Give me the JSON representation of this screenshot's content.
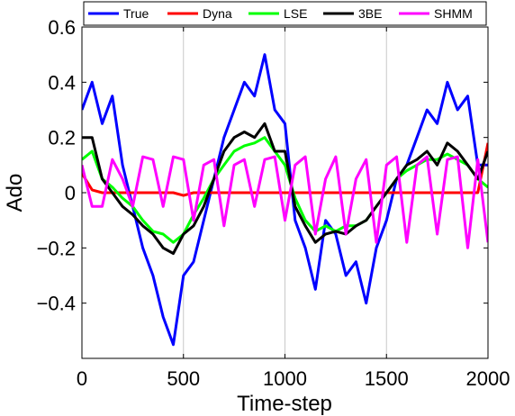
{
  "chart_data": {
    "type": "line",
    "xlabel": "Time-step",
    "ylabel": "Ado",
    "xlim": [
      0,
      2000
    ],
    "ylim": [
      -0.6,
      0.6
    ],
    "x_ticks": [
      0,
      500,
      1000,
      1500,
      2000
    ],
    "x_tick_labels": [
      "0",
      "500",
      "1000",
      "1500",
      "2000"
    ],
    "y_ticks": [
      -0.4,
      -0.2,
      0,
      0.2,
      0.4,
      0.6
    ],
    "y_tick_labels": [
      "−0.4",
      "−0.2",
      "0",
      "0.2",
      "0.4",
      "0.6"
    ],
    "grid": "vertical",
    "legend_position": "top",
    "x": [
      0,
      50,
      100,
      150,
      200,
      250,
      300,
      350,
      400,
      450,
      500,
      550,
      600,
      650,
      700,
      750,
      800,
      850,
      900,
      950,
      1000,
      1050,
      1100,
      1150,
      1200,
      1250,
      1300,
      1350,
      1400,
      1450,
      1500,
      1550,
      1600,
      1650,
      1700,
      1750,
      1800,
      1850,
      1900,
      1950,
      2000
    ],
    "series": [
      {
        "name": "True",
        "color": "#0000ff",
        "values": [
          0.3,
          0.4,
          0.25,
          0.35,
          0.1,
          -0.05,
          -0.2,
          -0.3,
          -0.45,
          -0.55,
          -0.3,
          -0.25,
          -0.1,
          0.05,
          0.2,
          0.3,
          0.4,
          0.35,
          0.5,
          0.3,
          0.25,
          -0.1,
          -0.2,
          -0.35,
          -0.1,
          -0.15,
          -0.3,
          -0.25,
          -0.4,
          -0.2,
          -0.1,
          0.05,
          0.1,
          0.2,
          0.3,
          0.25,
          0.4,
          0.3,
          0.35,
          0.1,
          0.1
        ]
      },
      {
        "name": "Dyna",
        "color": "#ff0000",
        "values": [
          0.07,
          0.01,
          0.0,
          0.0,
          0.0,
          0.0,
          0.0,
          0.0,
          0.0,
          0.0,
          -0.01,
          0.0,
          0.0,
          0.0,
          0.0,
          0.0,
          0.0,
          0.0,
          0.0,
          0.0,
          0.0,
          0.0,
          0.0,
          0.0,
          0.0,
          0.0,
          0.0,
          0.0,
          0.0,
          0.0,
          0.0,
          0.0,
          0.0,
          0.0,
          0.0,
          0.0,
          0.0,
          0.0,
          0.0,
          0.0,
          0.18
        ]
      },
      {
        "name": "LSE",
        "color": "#00ff00",
        "values": [
          0.12,
          0.15,
          0.05,
          0.02,
          -0.02,
          -0.05,
          -0.1,
          -0.14,
          -0.15,
          -0.18,
          -0.15,
          -0.08,
          -0.02,
          0.05,
          0.1,
          0.15,
          0.17,
          0.18,
          0.2,
          0.15,
          0.1,
          -0.02,
          -0.1,
          -0.14,
          -0.12,
          -0.14,
          -0.12,
          -0.12,
          -0.1,
          -0.05,
          0.0,
          0.05,
          0.08,
          0.1,
          0.12,
          0.12,
          0.14,
          0.12,
          0.1,
          0.05,
          0.02
        ]
      },
      {
        "name": "3BE",
        "color": "#000000",
        "values": [
          0.2,
          0.2,
          0.05,
          0.0,
          -0.05,
          -0.08,
          -0.12,
          -0.15,
          -0.2,
          -0.22,
          -0.15,
          -0.12,
          -0.05,
          0.05,
          0.15,
          0.2,
          0.22,
          0.2,
          0.25,
          0.15,
          0.15,
          -0.05,
          -0.12,
          -0.18,
          -0.15,
          -0.14,
          -0.15,
          -0.12,
          -0.1,
          -0.05,
          0.0,
          0.05,
          0.1,
          0.12,
          0.15,
          0.1,
          0.18,
          0.15,
          0.1,
          0.05,
          0.15
        ]
      },
      {
        "name": "SHMM",
        "color": "#ff00ff",
        "values": [
          0.1,
          -0.05,
          -0.05,
          0.12,
          0.05,
          -0.05,
          0.13,
          0.12,
          -0.05,
          0.13,
          0.12,
          -0.1,
          0.1,
          0.12,
          -0.12,
          0.1,
          0.12,
          -0.05,
          0.12,
          0.13,
          -0.1,
          0.1,
          0.13,
          -0.15,
          0.05,
          0.13,
          -0.15,
          0.05,
          0.12,
          -0.18,
          0.1,
          0.13,
          -0.18,
          0.1,
          0.13,
          -0.15,
          0.12,
          0.13,
          -0.2,
          0.12,
          -0.18
        ]
      }
    ]
  }
}
